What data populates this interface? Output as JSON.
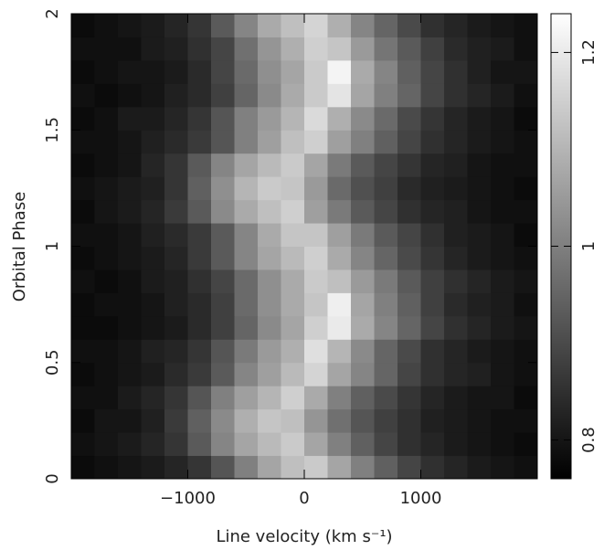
{
  "chart_data": {
    "type": "heatmap",
    "x_label": "Line velocity (km s⁻¹)",
    "y_label": "Orbital Phase",
    "xlim": [
      -2000,
      2000
    ],
    "ylim": [
      0,
      2
    ],
    "xticks": [
      {
        "value": -1000,
        "label": "−1000"
      },
      0,
      1000
    ],
    "yticks": [
      0,
      0.5,
      1,
      1.5,
      2
    ],
    "clim": [
      0.76,
      1.24
    ],
    "cticks": [
      0.8,
      1,
      1.2
    ],
    "x": [
      -1900,
      -1700,
      -1500,
      -1300,
      -1100,
      -900,
      -700,
      -500,
      -300,
      -100,
      100,
      300,
      500,
      700,
      900,
      1100,
      1300,
      1500,
      1700,
      1900
    ],
    "y": [
      0.05,
      0.15,
      0.25,
      0.35,
      0.45,
      0.55,
      0.65,
      0.75,
      0.85,
      0.95,
      1.05,
      1.15,
      1.25,
      1.35,
      1.45,
      1.55,
      1.65,
      1.75,
      1.85,
      1.95
    ],
    "z": [
      [
        0.78,
        0.79,
        0.8,
        0.81,
        0.83,
        0.86,
        0.92,
        1.0,
        1.07,
        1.12,
        1.14,
        1.07,
        1.0,
        0.94,
        0.89,
        0.85,
        0.83,
        0.81,
        0.8,
        0.79
      ],
      [
        0.79,
        0.8,
        0.81,
        0.83,
        0.86,
        0.93,
        1.01,
        1.07,
        1.11,
        1.14,
        1.07,
        1.0,
        0.94,
        0.89,
        0.85,
        0.83,
        0.81,
        0.8,
        0.79,
        0.78
      ],
      [
        0.78,
        0.8,
        0.8,
        0.82,
        0.87,
        0.94,
        1.02,
        1.09,
        1.13,
        1.12,
        1.04,
        0.97,
        0.92,
        0.88,
        0.85,
        0.82,
        0.81,
        0.8,
        0.79,
        0.79
      ],
      [
        0.79,
        0.79,
        0.81,
        0.83,
        0.86,
        0.92,
        1.0,
        1.06,
        1.1,
        1.15,
        1.08,
        1.0,
        0.94,
        0.9,
        0.86,
        0.83,
        0.81,
        0.8,
        0.8,
        0.78
      ],
      [
        0.78,
        0.79,
        0.8,
        0.81,
        0.84,
        0.87,
        0.93,
        1.01,
        1.06,
        1.11,
        1.16,
        1.07,
        1.01,
        0.95,
        0.89,
        0.85,
        0.83,
        0.82,
        0.8,
        0.79
      ],
      [
        0.79,
        0.79,
        0.8,
        0.82,
        0.83,
        0.86,
        0.92,
        0.99,
        1.05,
        1.09,
        1.18,
        1.1,
        1.02,
        0.95,
        0.9,
        0.85,
        0.83,
        0.81,
        0.8,
        0.79
      ],
      [
        0.78,
        0.78,
        0.79,
        0.8,
        0.81,
        0.84,
        0.88,
        0.95,
        1.02,
        1.07,
        1.15,
        1.2,
        1.08,
        1.01,
        0.95,
        0.89,
        0.85,
        0.83,
        0.81,
        0.8
      ],
      [
        0.78,
        0.79,
        0.79,
        0.8,
        0.82,
        0.84,
        0.88,
        0.96,
        1.03,
        1.08,
        1.13,
        1.21,
        1.07,
        1.0,
        0.94,
        0.88,
        0.84,
        0.82,
        0.81,
        0.79
      ],
      [
        0.79,
        0.78,
        0.79,
        0.81,
        0.82,
        0.85,
        0.89,
        0.96,
        1.03,
        1.08,
        1.14,
        1.12,
        1.05,
        0.99,
        0.93,
        0.88,
        0.85,
        0.83,
        0.81,
        0.8
      ],
      [
        0.78,
        0.79,
        0.8,
        0.81,
        0.83,
        0.87,
        0.93,
        1.01,
        1.07,
        1.11,
        1.15,
        1.08,
        1.01,
        0.95,
        0.9,
        0.86,
        0.83,
        0.81,
        0.8,
        0.79
      ],
      [
        0.79,
        0.79,
        0.8,
        0.82,
        0.84,
        0.87,
        0.93,
        1.01,
        1.08,
        1.13,
        1.13,
        1.06,
        0.99,
        0.93,
        0.89,
        0.85,
        0.82,
        0.81,
        0.8,
        0.78
      ],
      [
        0.78,
        0.8,
        0.81,
        0.83,
        0.87,
        0.93,
        1.02,
        1.08,
        1.12,
        1.15,
        1.06,
        0.99,
        0.93,
        0.89,
        0.85,
        0.83,
        0.82,
        0.8,
        0.79,
        0.79
      ],
      [
        0.79,
        0.8,
        0.81,
        0.82,
        0.86,
        0.94,
        1.03,
        1.1,
        1.14,
        1.13,
        1.05,
        0.96,
        0.91,
        0.88,
        0.84,
        0.82,
        0.81,
        0.8,
        0.79,
        0.78
      ],
      [
        0.78,
        0.79,
        0.8,
        0.83,
        0.86,
        0.93,
        1.01,
        1.07,
        1.11,
        1.14,
        1.07,
        0.99,
        0.93,
        0.89,
        0.86,
        0.83,
        0.82,
        0.8,
        0.79,
        0.79
      ],
      [
        0.79,
        0.79,
        0.8,
        0.82,
        0.84,
        0.87,
        0.92,
        1.0,
        1.06,
        1.12,
        1.15,
        1.06,
        1.0,
        0.94,
        0.89,
        0.85,
        0.83,
        0.81,
        0.8,
        0.79
      ],
      [
        0.78,
        0.79,
        0.81,
        0.81,
        0.83,
        0.86,
        0.92,
        1.0,
        1.05,
        1.1,
        1.17,
        1.09,
        1.02,
        0.96,
        0.9,
        0.86,
        0.83,
        0.81,
        0.8,
        0.78
      ],
      [
        0.79,
        0.78,
        0.79,
        0.8,
        0.82,
        0.84,
        0.88,
        0.95,
        1.02,
        1.08,
        1.14,
        1.19,
        1.07,
        1.0,
        0.95,
        0.89,
        0.85,
        0.83,
        0.81,
        0.79
      ],
      [
        0.78,
        0.79,
        0.8,
        0.8,
        0.81,
        0.84,
        0.89,
        0.96,
        1.03,
        1.07,
        1.14,
        1.22,
        1.08,
        1.01,
        0.94,
        0.89,
        0.85,
        0.82,
        0.8,
        0.8
      ],
      [
        0.79,
        0.79,
        0.79,
        0.81,
        0.82,
        0.85,
        0.89,
        0.97,
        1.04,
        1.09,
        1.15,
        1.13,
        1.05,
        0.98,
        0.93,
        0.88,
        0.84,
        0.82,
        0.81,
        0.79
      ],
      [
        0.78,
        0.79,
        0.8,
        0.81,
        0.83,
        0.86,
        0.93,
        1.01,
        1.08,
        1.12,
        1.16,
        1.09,
        1.01,
        0.95,
        0.9,
        0.85,
        0.83,
        0.81,
        0.8,
        0.79
      ]
    ]
  }
}
